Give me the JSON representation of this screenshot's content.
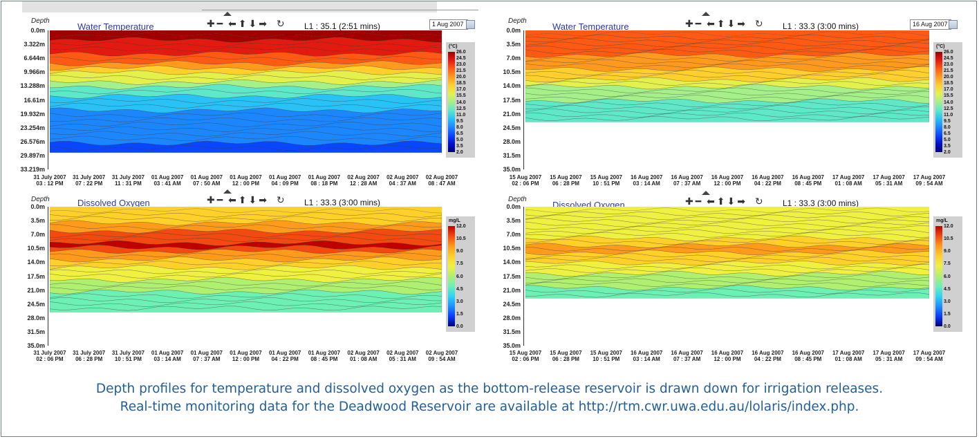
{
  "caption": {
    "line1": "Depth profiles for temperature and dissolved oxygen as the bottom-release reservoir is drawn down for irrigation releases.",
    "line2": "Real-time monitoring data for the Deadwood Reservoir are available at http://rtm.cwr.uwa.edu.au/lolaris/index.php."
  },
  "icons": [
    "zoom-in-icon",
    "zoom-out-icon",
    "pan-left-icon",
    "pan-up-icon",
    "pan-down-icon",
    "pan-right-icon",
    "reset-icon",
    "calendar-icon"
  ],
  "panels": [
    {
      "id": "tl",
      "title": "Water Temperature",
      "depth_label": "Depth",
      "l1": "L1 : 35.1 (2:51 mins)",
      "date": "1 Aug 2007",
      "depth_ticks": [
        "0.0m",
        "3.322m",
        "6.644m",
        "9.966m",
        "13.288m",
        "16.61m",
        "19.932m",
        "23.254m",
        "26.576m",
        "29.897m",
        "33.219m"
      ],
      "x_ticks": [
        [
          "31 July 2007",
          "03 : 12 PM"
        ],
        [
          "31 July 2007",
          "07 : 22 PM"
        ],
        [
          "31 July 2007",
          "11 : 31 PM"
        ],
        [
          "01 Aug 2007",
          "03 : 41 AM"
        ],
        [
          "01 Aug 2007",
          "07 : 50 AM"
        ],
        [
          "01 Aug 2007",
          "12 : 00 PM"
        ],
        [
          "01 Aug 2007",
          "04 : 09 PM"
        ],
        [
          "01 Aug 2007",
          "08 : 18 PM"
        ],
        [
          "02 Aug 2007",
          "12 : 28 AM"
        ],
        [
          "02 Aug 2007",
          "04 : 37 AM"
        ],
        [
          "02 Aug 2007",
          "08 : 47 AM"
        ]
      ],
      "colorbar": {
        "unit": "(°C)",
        "ticks": [
          "26.0",
          "24.5",
          "23.0",
          "21.5",
          "20.0",
          "18.5",
          "17.0",
          "15.5",
          "14.0",
          "12.5",
          "11.0",
          "9.5",
          "8.0",
          "6.5",
          "5.0",
          "3.5",
          "2.0"
        ]
      }
    },
    {
      "id": "tr",
      "title": "Water Temperature",
      "depth_label": "Depth",
      "l1": "L1 : 33.3 (3:00 mins)",
      "date": "16 Aug 2007",
      "depth_ticks": [
        "0.0m",
        "3.5m",
        "7.0m",
        "10.5m",
        "14.0m",
        "17.5m",
        "21.0m",
        "24.5m",
        "28.0m",
        "31.5m",
        "35.0m"
      ],
      "x_ticks": [
        [
          "15 Aug 2007",
          "02 : 06 PM"
        ],
        [
          "15 Aug 2007",
          "06 : 28 PM"
        ],
        [
          "15 Aug 2007",
          "10 : 51 PM"
        ],
        [
          "16 Aug 2007",
          "03 : 14 AM"
        ],
        [
          "16 Aug 2007",
          "07 : 37 AM"
        ],
        [
          "16 Aug 2007",
          "12 : 00 PM"
        ],
        [
          "16 Aug 2007",
          "04 : 22 PM"
        ],
        [
          "16 Aug 2007",
          "08 : 45 PM"
        ],
        [
          "17 Aug 2007",
          "01 : 08 AM"
        ],
        [
          "17 Aug 2007",
          "05 : 31 AM"
        ],
        [
          "17 Aug 2007",
          "09 : 54 AM"
        ]
      ],
      "colorbar": {
        "unit": "(°C)",
        "ticks": [
          "26.0",
          "24.5",
          "23.0",
          "21.5",
          "20.0",
          "18.5",
          "17.0",
          "15.5",
          "14.0",
          "12.5",
          "11.0",
          "9.5",
          "8.0",
          "6.5",
          "5.0",
          "3.5",
          "2.0"
        ]
      }
    },
    {
      "id": "bl",
      "title": "Dissolved Oxygen",
      "depth_label": "Depth",
      "l1": "L1 : 33.3 (3:00 mins)",
      "date": "",
      "depth_ticks": [
        "0.0m",
        "3.5m",
        "7.0m",
        "10.5m",
        "14.0m",
        "17.5m",
        "21.0m",
        "24.5m",
        "28.0m",
        "31.5m",
        "35.0m"
      ],
      "x_ticks": [
        [
          "31 July 2007",
          "02 : 06 PM"
        ],
        [
          "31 July 2007",
          "06 : 28 PM"
        ],
        [
          "31 July 2007",
          "10 : 51 PM"
        ],
        [
          "01 Aug 2007",
          "03 : 14 AM"
        ],
        [
          "01 Aug 2007",
          "07 : 37 AM"
        ],
        [
          "01 Aug 2007",
          "12 : 00 PM"
        ],
        [
          "01 Aug 2007",
          "04 : 22 PM"
        ],
        [
          "01 Aug 2007",
          "08 : 45 PM"
        ],
        [
          "02 Aug 2007",
          "01 : 08 AM"
        ],
        [
          "02 Aug 2007",
          "05 : 31 AM"
        ],
        [
          "02 Aug 2007",
          "09 : 54 AM"
        ]
      ],
      "colorbar": {
        "unit": "mg/L",
        "ticks": [
          "12.0",
          "10.5",
          "9.0",
          "7.5",
          "6.0",
          "4.5",
          "3.0",
          "1.5",
          "0.0"
        ]
      }
    },
    {
      "id": "br",
      "title": "Dissolved Oxygen",
      "depth_label": "Depth",
      "l1": "L1 : 33.3 (3:00 mins)",
      "date": "",
      "depth_ticks": [
        "0.0m",
        "3.5m",
        "7.0m",
        "10.5m",
        "14.0m",
        "17.5m",
        "21.0m",
        "24.5m",
        "28.0m",
        "31.5m",
        "35.0m"
      ],
      "x_ticks": [
        [
          "15 Aug 2007",
          "02 : 06 PM"
        ],
        [
          "15 Aug 2007",
          "06 : 28 PM"
        ],
        [
          "15 Aug 2007",
          "10 : 51 PM"
        ],
        [
          "16 Aug 2007",
          "03 : 14 AM"
        ],
        [
          "16 Aug 2007",
          "07 : 37 AM"
        ],
        [
          "16 Aug 2007",
          "12 : 00 PM"
        ],
        [
          "16 Aug 2007",
          "04 : 22 PM"
        ],
        [
          "16 Aug 2007",
          "08 : 45 PM"
        ],
        [
          "17 Aug 2007",
          "01 : 08 AM"
        ],
        [
          "17 Aug 2007",
          "05 : 31 AM"
        ],
        [
          "17 Aug 2007",
          "09 : 54 AM"
        ]
      ],
      "colorbar": {
        "unit": "mg/L",
        "ticks": [
          "12.0",
          "10.5",
          "9.0",
          "7.5",
          "6.0",
          "4.5",
          "3.0",
          "1.5",
          "0.0"
        ]
      }
    }
  ]
}
